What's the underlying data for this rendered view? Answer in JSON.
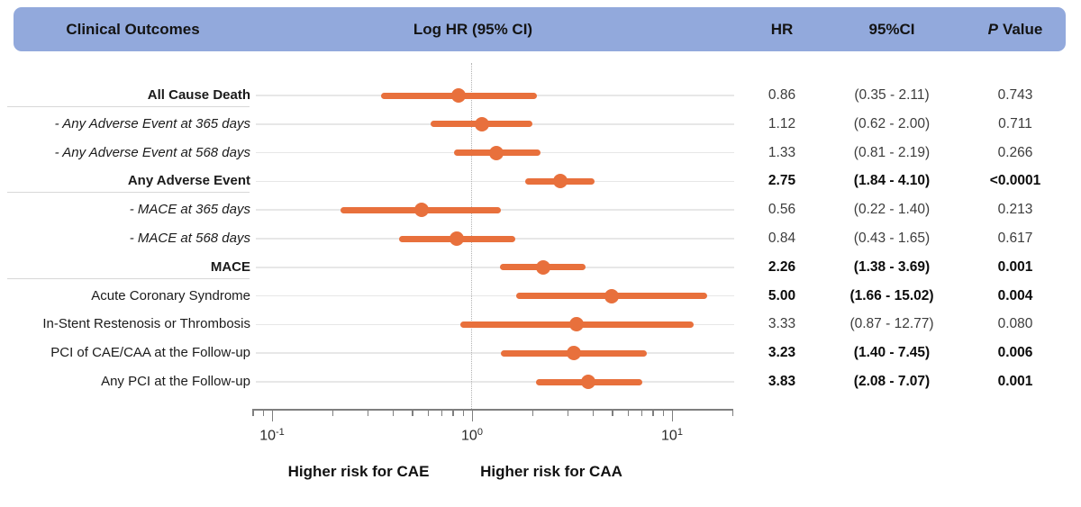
{
  "header": {
    "outcomes_label": "Clinical Outcomes",
    "plot_label": "Log HR (95% CI)",
    "hr_label": "HR",
    "ci_label": "95%CI",
    "p_label_italic": "P",
    "p_label_rest": "Value"
  },
  "colors": {
    "header_bg": "#92A9DC",
    "marker_orange": "#E8703C",
    "leader_line": "#E7E7E7",
    "separator_line": "#D8D8D8",
    "axis_gray": "#7F7F7F",
    "reference_dotted": "#B2B2B2"
  },
  "chart_data": {
    "type": "scatter",
    "subtype": "forest_plot",
    "title": "Log HR (95% CI)",
    "x_scale": "log10",
    "x_range": [
      0.08,
      20
    ],
    "reference_line": 1.0,
    "axis": {
      "major_ticks": [
        {
          "value": 0.1,
          "base": "10",
          "exp": "-1"
        },
        {
          "value": 1,
          "base": "10",
          "exp": "0"
        },
        {
          "value": 10,
          "base": "10",
          "exp": "1"
        }
      ],
      "minor_ticks": [
        0.08,
        0.09,
        0.2,
        0.3,
        0.4,
        0.5,
        0.6,
        0.7,
        0.8,
        0.9,
        2,
        3,
        4,
        5,
        6,
        7,
        8,
        9,
        20
      ],
      "left_caption": "Higher risk for CAE",
      "right_caption": "Higher risk for CAA"
    },
    "columns": [
      "Clinical Outcomes",
      "Log HR (95% CI)",
      "HR",
      "95%CI",
      "P Value"
    ],
    "rows": [
      {
        "label": "All Cause Death",
        "style": "bold",
        "hr": 0.86,
        "ci_low": 0.35,
        "ci_high": 2.11,
        "hr_text": "0.86",
        "ci_text": "(0.35 - 2.11)",
        "p_text": "0.743",
        "significant": false,
        "separator_after": true
      },
      {
        "label": "- Any Adverse Event at 365 days",
        "style": "italic",
        "hr": 1.12,
        "ci_low": 0.62,
        "ci_high": 2.0,
        "hr_text": "1.12",
        "ci_text": "(0.62 - 2.00)",
        "p_text": "0.711",
        "significant": false,
        "separator_after": false
      },
      {
        "label": "- Any Adverse Event at 568 days",
        "style": "italic",
        "hr": 1.33,
        "ci_low": 0.81,
        "ci_high": 2.19,
        "hr_text": "1.33",
        "ci_text": "(0.81 - 2.19)",
        "p_text": "0.266",
        "significant": false,
        "separator_after": false
      },
      {
        "label": "Any Adverse Event",
        "style": "bold",
        "hr": 2.75,
        "ci_low": 1.84,
        "ci_high": 4.1,
        "hr_text": "2.75",
        "ci_text": "(1.84 - 4.10)",
        "p_text": "<0.0001",
        "significant": true,
        "separator_after": true
      },
      {
        "label": "- MACE at 365 days",
        "style": "italic",
        "hr": 0.56,
        "ci_low": 0.22,
        "ci_high": 1.4,
        "hr_text": "0.56",
        "ci_text": "(0.22 - 1.40)",
        "p_text": "0.213",
        "significant": false,
        "separator_after": false
      },
      {
        "label": "- MACE at 568 days",
        "style": "italic",
        "hr": 0.84,
        "ci_low": 0.43,
        "ci_high": 1.65,
        "hr_text": "0.84",
        "ci_text": "(0.43 - 1.65)",
        "p_text": "0.617",
        "significant": false,
        "separator_after": false
      },
      {
        "label": "MACE",
        "style": "bold",
        "hr": 2.26,
        "ci_low": 1.38,
        "ci_high": 3.69,
        "hr_text": "2.26",
        "ci_text": "(1.38 - 3.69)",
        "p_text": "0.001",
        "significant": true,
        "separator_after": true
      },
      {
        "label": "Acute Coronary Syndrome",
        "style": "regular",
        "hr": 5.0,
        "ci_low": 1.66,
        "ci_high": 15.02,
        "hr_text": "5.00",
        "ci_text": "(1.66 - 15.02)",
        "p_text": "0.004",
        "significant": true,
        "separator_after": false
      },
      {
        "label": "In-Stent Restenosis or Thrombosis",
        "style": "regular",
        "hr": 3.33,
        "ci_low": 0.87,
        "ci_high": 12.77,
        "hr_text": "3.33",
        "ci_text": "(0.87 - 12.77)",
        "p_text": "0.080",
        "significant": false,
        "separator_after": false
      },
      {
        "label": "PCI of CAE/CAA at the Follow-up",
        "style": "regular",
        "hr": 3.23,
        "ci_low": 1.4,
        "ci_high": 7.45,
        "hr_text": "3.23",
        "ci_text": "(1.40 - 7.45)",
        "p_text": "0.006",
        "significant": true,
        "separator_after": false
      },
      {
        "label": "Any PCI at the Follow-up",
        "style": "regular",
        "hr": 3.83,
        "ci_low": 2.08,
        "ci_high": 7.07,
        "hr_text": "3.83",
        "ci_text": "(2.08 - 7.07)",
        "p_text": "0.001",
        "significant": true,
        "separator_after": false
      }
    ]
  }
}
